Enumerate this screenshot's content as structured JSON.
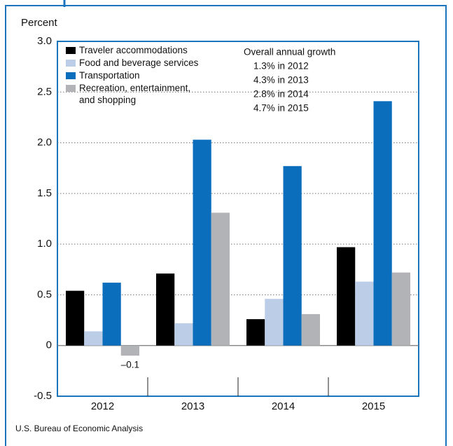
{
  "chart_data": {
    "type": "bar",
    "y_label": "Percent",
    "source": "U.S. Bureau of Economic Analysis",
    "categories": [
      "2012",
      "2013",
      "2014",
      "2015"
    ],
    "series": [
      {
        "name": "Traveler accommodations",
        "color": "#000000",
        "values": [
          0.54,
          0.71,
          0.26,
          0.97
        ]
      },
      {
        "name": "Food and beverage services",
        "color": "#bccde8",
        "values": [
          0.14,
          0.22,
          0.46,
          0.63
        ]
      },
      {
        "name": "Transportation",
        "color": "#0a6ebd",
        "values": [
          0.62,
          2.03,
          1.77,
          2.41
        ]
      },
      {
        "name": "Recreation, entertainment, and shopping",
        "color": "#b1b3b6",
        "values": [
          -0.1,
          1.31,
          0.31,
          0.72
        ],
        "value_labels": [
          "–0.1",
          null,
          null,
          null
        ]
      }
    ],
    "ylim": [
      -0.5,
      3.0
    ],
    "yticks": [
      -0.5,
      0,
      0.5,
      {
        "value": 1,
        "label": "1.0"
      },
      1.5,
      {
        "value": 2,
        "label": "2.0"
      },
      2.5,
      {
        "value": 3,
        "label": "3.0"
      }
    ],
    "grid": true,
    "legend": "upper left",
    "annotations": [
      "Overall annual growth",
      "1.3% in 2012",
      "4.3% in 2013",
      "2.8% in 2014",
      "4.7% in 2015"
    ]
  }
}
